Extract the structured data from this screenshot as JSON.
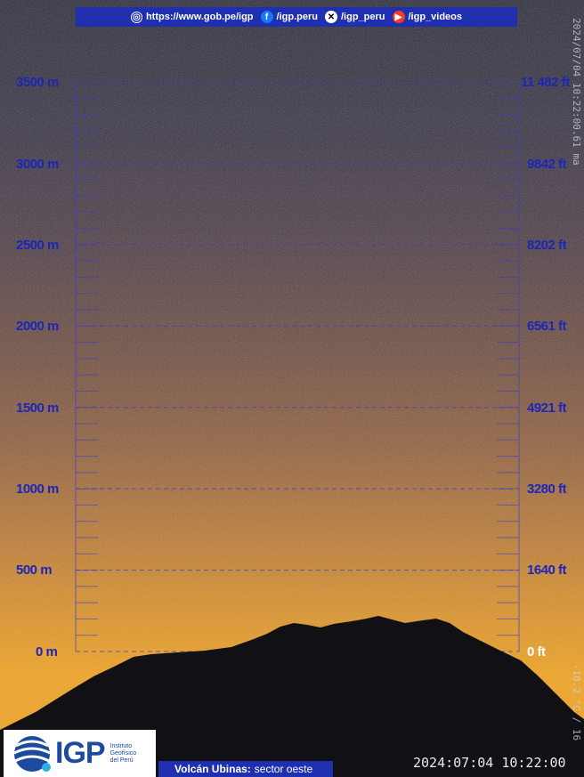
{
  "top_bar": {
    "website": "https://www.gob.pe/igp",
    "facebook": "/igp.peru",
    "x_handle": "/igp_peru",
    "videos": "/igp_videos"
  },
  "scale": {
    "meters": [
      "3500 m",
      "3000 m",
      "2500 m",
      "2000 m",
      "1500 m",
      "1000 m",
      "500 m",
      "0 m"
    ],
    "feet": [
      "11 482 ft",
      "9842 ft",
      "8202 ft",
      "6561 ft",
      "4921 ft",
      "3280 ft",
      "1640 ft",
      "0 ft"
    ]
  },
  "logo": {
    "letters": "IGP",
    "sub1": "Instituto",
    "sub2": "Geofísico",
    "sub3": "del Perú"
  },
  "caption": {
    "volcano": "Volcán Ubinas:",
    "sector": "sector oeste"
  },
  "timestamp": "2024:07:04 10:22:00",
  "vertical_stamp_top": "2024/07/04 10:22:00.61 ma",
  "vertical_stamp_bottom": "-10.2 °C / 16",
  "colors": {
    "scale_blue": "#1c26b8",
    "bar_blue": "#1e2fb0",
    "mountain": "#111014"
  }
}
